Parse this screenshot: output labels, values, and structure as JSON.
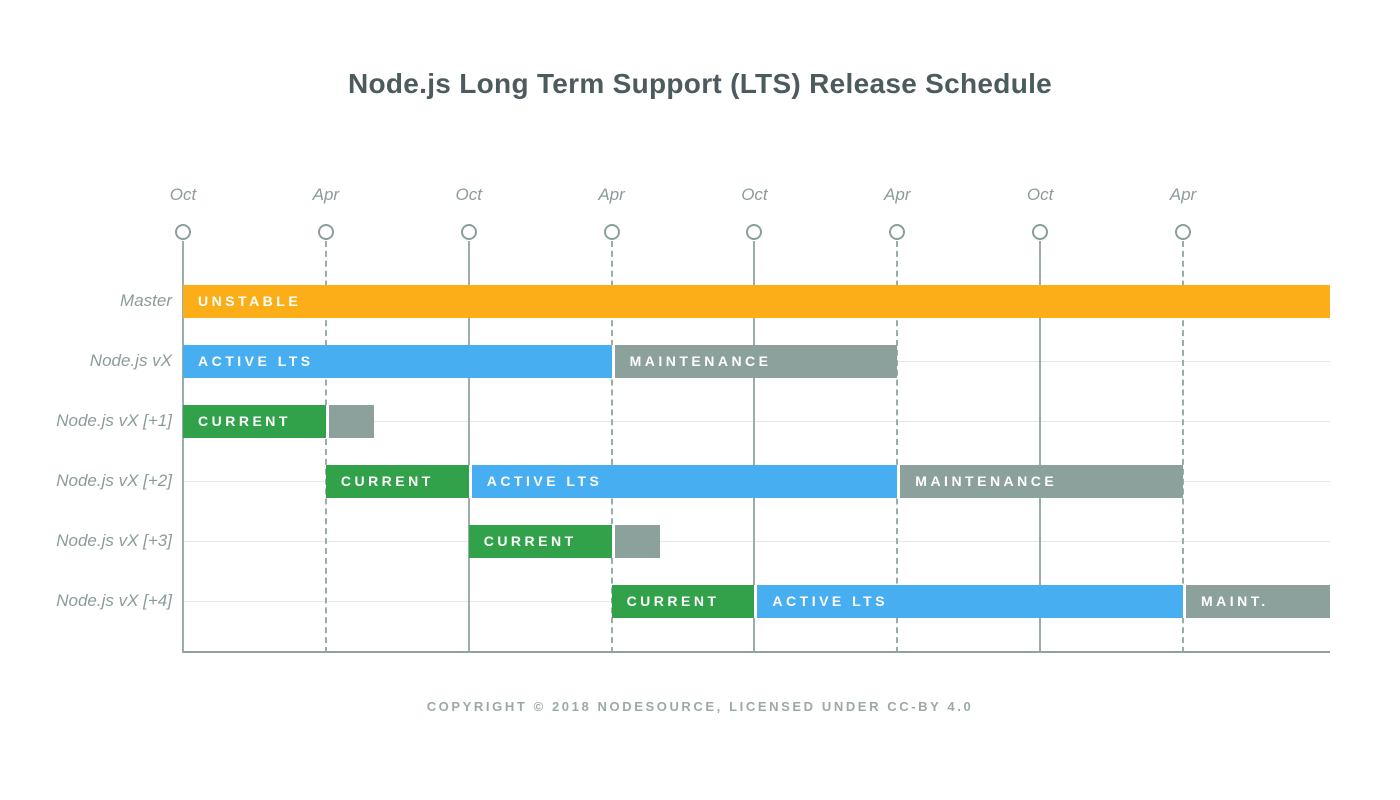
{
  "title": "Node.js Long Term Support (LTS) Release Schedule",
  "footer": "COPYRIGHT © 2018 NODESOURCE, LICENSED UNDER CC-BY 4.0",
  "colors": {
    "unstable": "#FBAE17",
    "current": "#31A24A",
    "active_lts": "#47AEF2",
    "maintenance": "#8CA09C",
    "axis": "#8FA3A1",
    "gridline": "#9BACAA",
    "row_line": "#E4E8E7",
    "label_text": "#8C9B9B",
    "title_text": "#4C5B5D",
    "bar_text": "#FFFFFF"
  },
  "chart_data": {
    "type": "gantt",
    "title": "Node.js Long Term Support (LTS) Release Schedule",
    "x_axis": {
      "unit": "half-year ticks, alternating October and April",
      "ticks": [
        {
          "label": "Oct",
          "line_style": "solid",
          "t": 0
        },
        {
          "label": "Apr",
          "line_style": "dashed",
          "t": 1
        },
        {
          "label": "Oct",
          "line_style": "solid",
          "t": 2
        },
        {
          "label": "Apr",
          "line_style": "dashed",
          "t": 3
        },
        {
          "label": "Oct",
          "line_style": "solid",
          "t": 4
        },
        {
          "label": "Apr",
          "line_style": "dashed",
          "t": 5
        },
        {
          "label": "Oct",
          "line_style": "solid",
          "t": 6
        },
        {
          "label": "Apr",
          "line_style": "dashed",
          "t": 7
        }
      ],
      "range": [
        0,
        8.03
      ],
      "grid": true
    },
    "legend": "none",
    "rows": [
      {
        "label": "Master",
        "segments": [
          {
            "label": "UNSTABLE",
            "kind": "unstable",
            "start": 0,
            "end": 8.03
          }
        ]
      },
      {
        "label": "Node.js vX",
        "segments": [
          {
            "label": "ACTIVE LTS",
            "kind": "active_lts",
            "start": 0,
            "end": 3
          },
          {
            "label": "MAINTENANCE",
            "kind": "maintenance",
            "start": 3,
            "end": 5
          }
        ]
      },
      {
        "label": "Node.js vX [+1]",
        "segments": [
          {
            "label": "CURRENT",
            "kind": "current",
            "start": 0,
            "end": 1
          },
          {
            "label": "",
            "kind": "maintenance",
            "start": 1,
            "end": 1.34
          }
        ]
      },
      {
        "label": "Node.js vX [+2]",
        "segments": [
          {
            "label": "CURRENT",
            "kind": "current",
            "start": 1,
            "end": 2
          },
          {
            "label": "ACTIVE LTS",
            "kind": "active_lts",
            "start": 2,
            "end": 5
          },
          {
            "label": "MAINTENANCE",
            "kind": "maintenance",
            "start": 5,
            "end": 7
          }
        ]
      },
      {
        "label": "Node.js vX [+3]",
        "segments": [
          {
            "label": "CURRENT",
            "kind": "current",
            "start": 2,
            "end": 3
          },
          {
            "label": "",
            "kind": "maintenance",
            "start": 3,
            "end": 3.34
          }
        ]
      },
      {
        "label": "Node.js vX [+4]",
        "segments": [
          {
            "label": "CURRENT",
            "kind": "current",
            "start": 3,
            "end": 4
          },
          {
            "label": "ACTIVE LTS",
            "kind": "active_lts",
            "start": 4,
            "end": 7
          },
          {
            "label": "MAINT.",
            "kind": "maintenance",
            "start": 7,
            "end": 8.03
          }
        ]
      }
    ]
  }
}
